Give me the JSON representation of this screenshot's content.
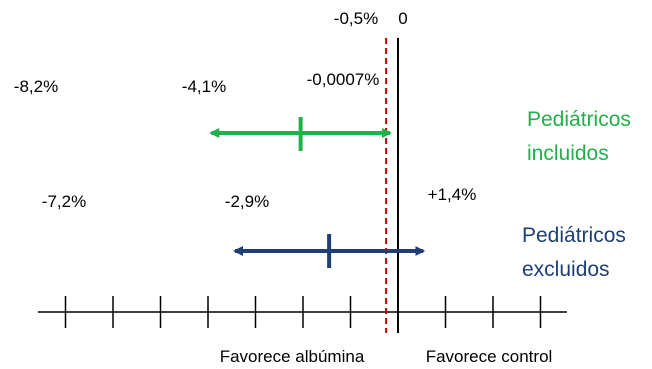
{
  "zero_label": "0",
  "margin_label": "-0,5%",
  "colors": {
    "included": "#1fb24a",
    "excluded": "#1f3f73",
    "margin": "#c00000",
    "axis": "#000000"
  },
  "scale": {
    "ticks": [
      -14,
      -12,
      -10,
      -8,
      -6,
      -4,
      -2,
      0,
      2,
      4,
      6
    ],
    "margin": -0.5
  },
  "rows": [
    {
      "id": "included",
      "label_line1": "Pediátricos",
      "label_line2": "incluidos",
      "low": -8.2,
      "point": -4.1,
      "high": -0.0007,
      "low_label": "-8,2%",
      "point_label": "-4,1%",
      "high_label": "-0,0007%"
    },
    {
      "id": "excluded",
      "label_line1": "Pediátricos",
      "label_line2": "excluidos",
      "low": -7.2,
      "point": -2.9,
      "high": 1.4,
      "low_label": "-7,2%",
      "point_label": "-2,9%",
      "high_label": "+1,4%"
    }
  ],
  "favor_left": "Favorece albúmina",
  "favor_right": "Favorece control"
}
